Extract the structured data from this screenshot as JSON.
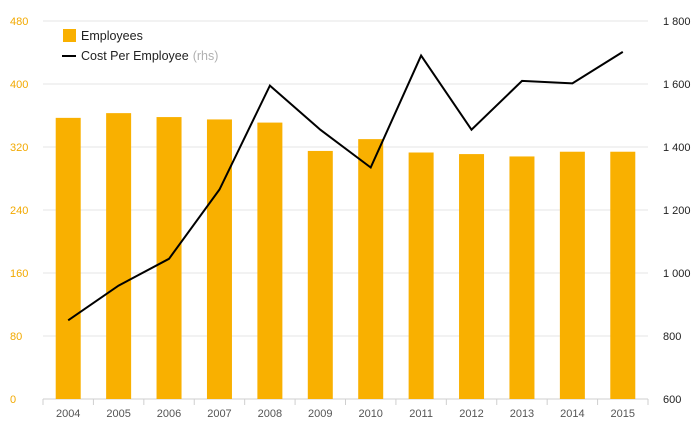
{
  "chart_data": {
    "type": "bar",
    "categories": [
      "2004",
      "2005",
      "2006",
      "2007",
      "2008",
      "2009",
      "2010",
      "2011",
      "2012",
      "2013",
      "2014",
      "2015"
    ],
    "series": [
      {
        "name": "Employees",
        "type": "bar",
        "axis": "left",
        "color": "#f9b000",
        "values": [
          357,
          363,
          358,
          355,
          351,
          315,
          330,
          313,
          311,
          308,
          314,
          314
        ]
      },
      {
        "name": "Cost Per Employee",
        "type": "line",
        "axis": "right",
        "color": "#000000",
        "values": [
          850,
          960,
          1045,
          1265,
          1595,
          1455,
          1335,
          1690,
          1455,
          1610,
          1602,
          1702
        ]
      }
    ],
    "left_axis": {
      "ylim": [
        0,
        480
      ],
      "ticks": [
        "0",
        "80",
        "160",
        "240",
        "320",
        "400",
        "480"
      ],
      "color": "#f2a900"
    },
    "right_axis": {
      "ylim": [
        600,
        1800
      ],
      "ticks": [
        "600",
        "800",
        "1 000",
        "1 200",
        "1 400",
        "1 600",
        "1 800"
      ],
      "color": "#222222"
    },
    "legend": {
      "position": "top-left",
      "items": [
        {
          "label": "Employees",
          "suffix": ""
        },
        {
          "label": "Cost Per Employee",
          "suffix": "(rhs)"
        }
      ]
    },
    "grid": true
  }
}
